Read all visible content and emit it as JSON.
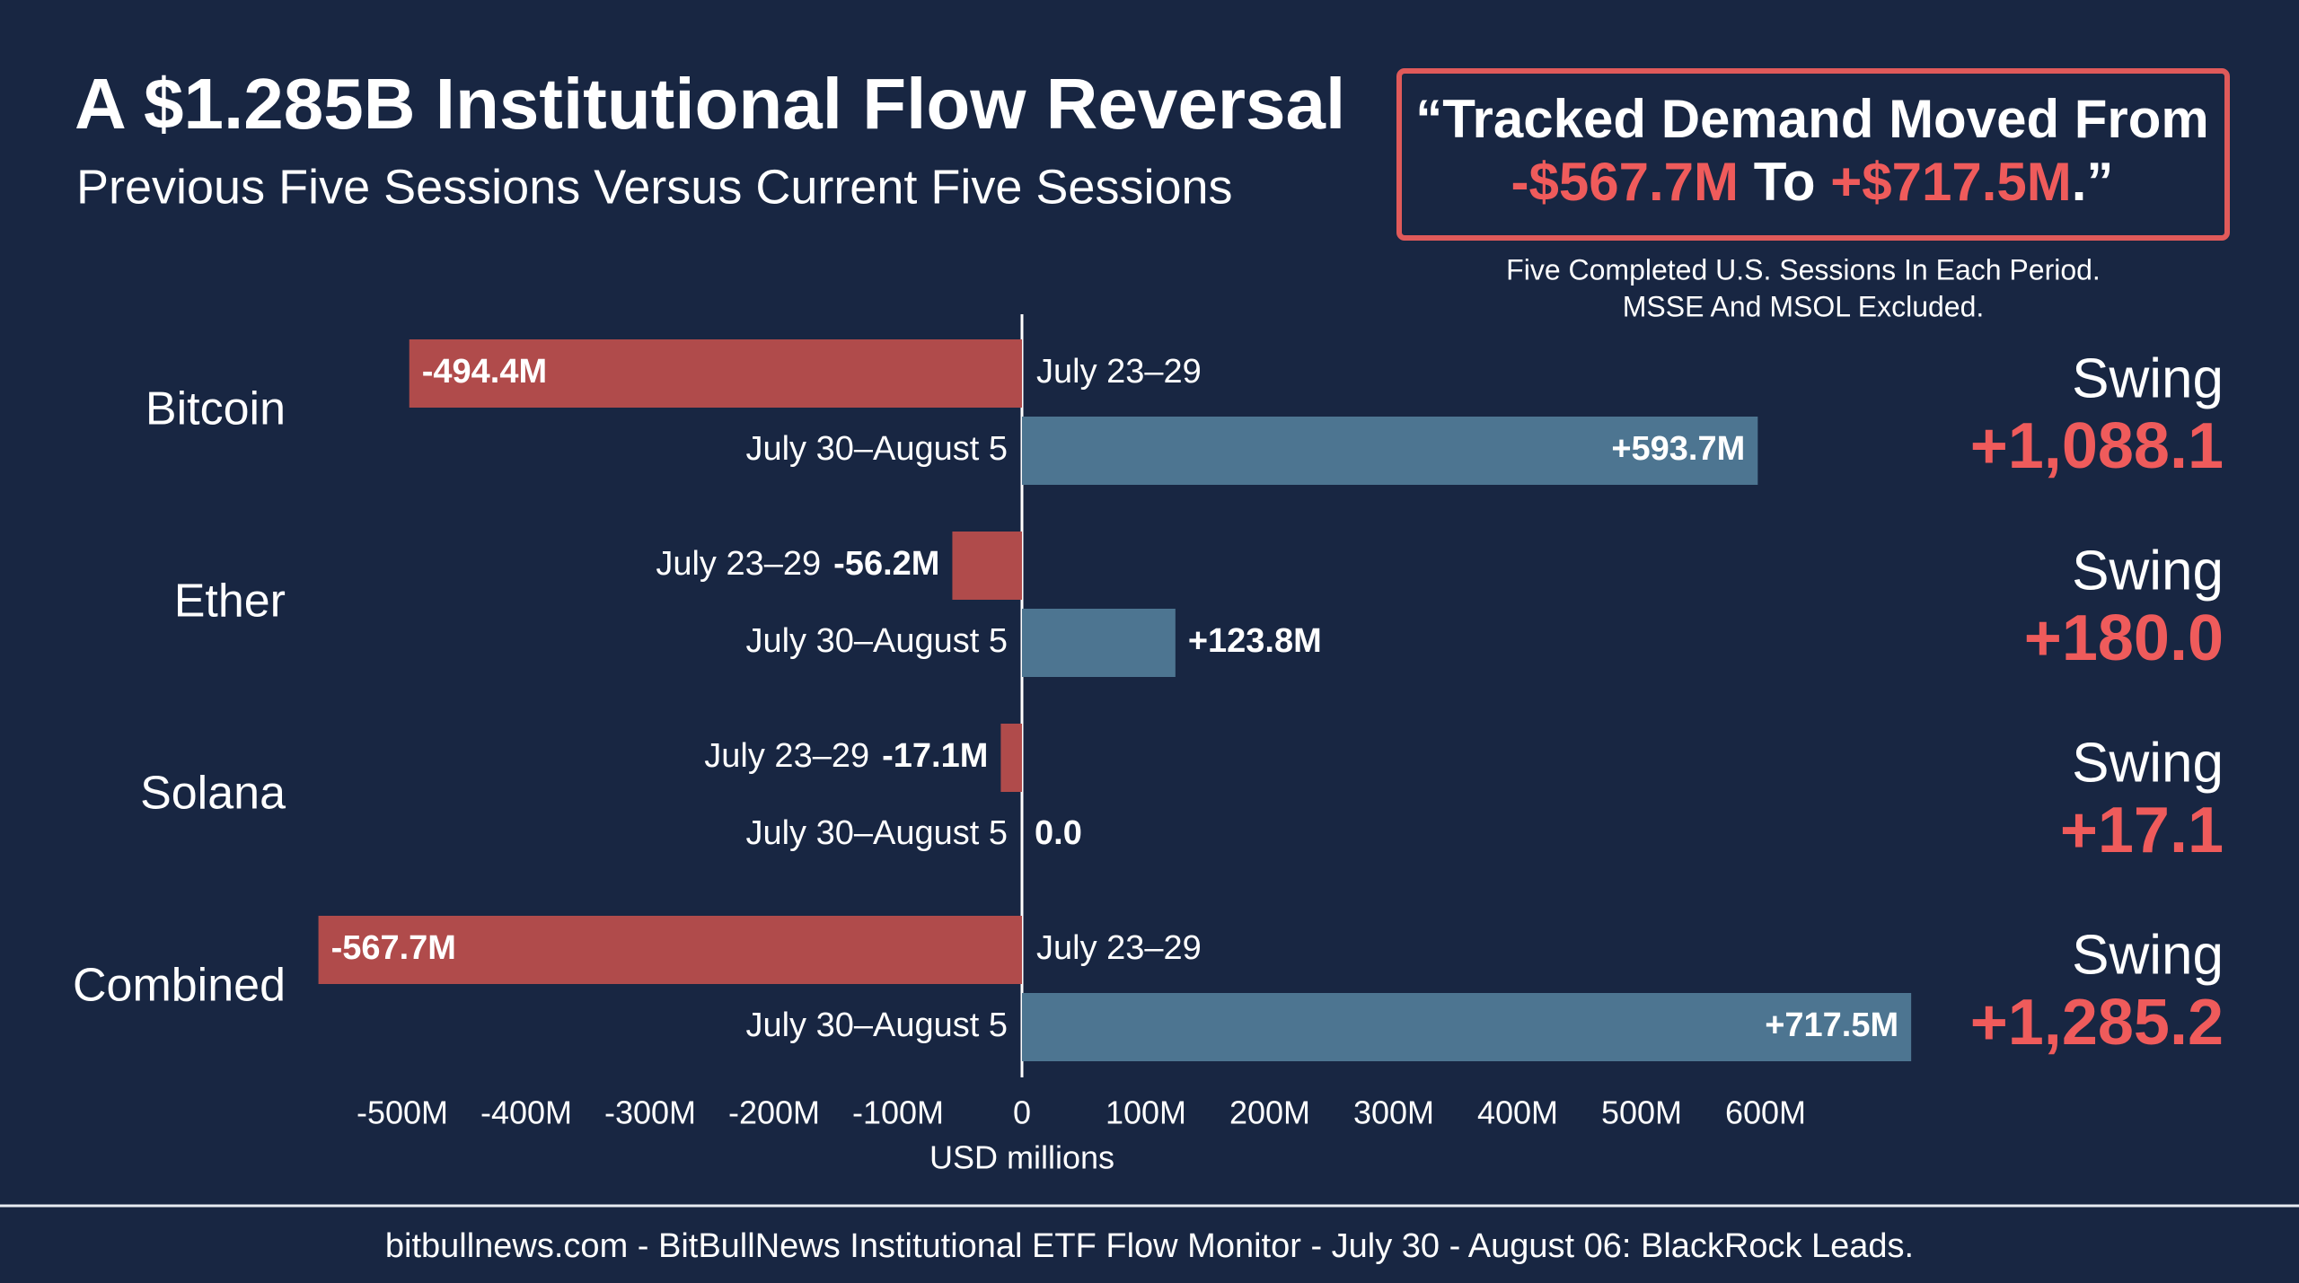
{
  "title": "A $1.285B Institutional Flow Reversal",
  "subtitle": "Previous Five Sessions Versus Current Five Sessions",
  "quote": {
    "line1": "“Tracked Demand Moved From",
    "from": "-$567.7M",
    "to_word": " To ",
    "to": "+$717.5M",
    "end": ".”"
  },
  "notes": [
    "Five Completed U.S. Sessions In Each Period.",
    "MSSE And MSOL Excluded."
  ],
  "footer": "bitbullnews.com - BitBullNews Institutional ETF Flow Monitor - July 30 - August 06: BlackRock Leads.",
  "chart_data": {
    "type": "hbar",
    "categories": [
      "Bitcoin",
      "Ether",
      "Solana",
      "Combined"
    ],
    "series": [
      {
        "name": "July 23–29",
        "color": "#b04b4b",
        "values": [
          -494.4,
          -56.2,
          -17.1,
          -567.7
        ],
        "value_labels": [
          "-494.4M",
          "-56.2M",
          "-17.1M",
          "-567.7M"
        ]
      },
      {
        "name": "July 30–August 5",
        "color": "#4d7591",
        "values": [
          593.7,
          123.8,
          0,
          717.5
        ],
        "value_labels": [
          "+593.7M",
          "+123.8M",
          "0.0",
          "+717.5M"
        ]
      }
    ],
    "swing": {
      "label": "Swing",
      "color": "#ef5b5b",
      "values": [
        1088.1,
        180.0,
        17.1,
        1285.2
      ],
      "value_labels": [
        "+1,088.1",
        "+180.0",
        "+17.1",
        "+1,285.2"
      ]
    },
    "xlim": [
      -600,
      750
    ],
    "xticks": [
      {
        "value": -500,
        "label": "-500M"
      },
      {
        "value": -400,
        "label": "-400M"
      },
      {
        "value": -300,
        "label": "-300M"
      },
      {
        "value": -200,
        "label": "-200M"
      },
      {
        "value": -100,
        "label": "-100M"
      },
      0,
      {
        "value": 100,
        "label": "100M"
      },
      {
        "value": 200,
        "label": "200M"
      },
      {
        "value": 300,
        "label": "300M"
      },
      {
        "value": 400,
        "label": "400M"
      },
      {
        "value": 500,
        "label": "500M"
      },
      {
        "value": 600,
        "label": "600M"
      }
    ],
    "xlabel": "USD millions"
  }
}
